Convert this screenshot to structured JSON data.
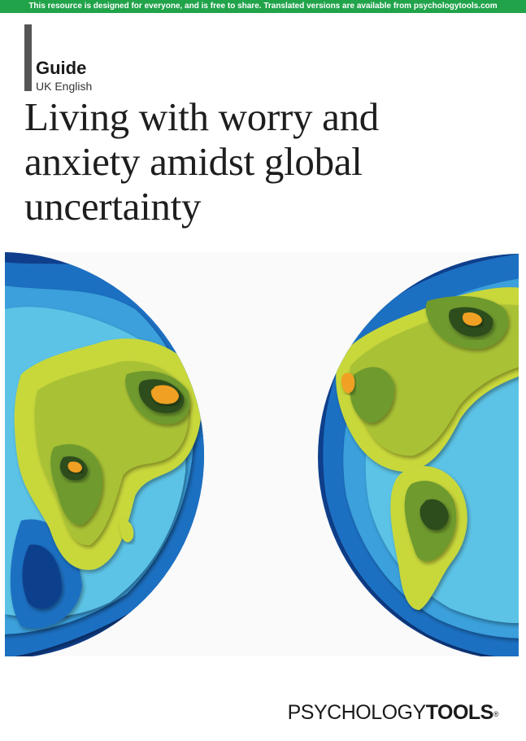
{
  "banner": {
    "text": "This resource is designed for everyone, and is free to share. Translated versions are available from psychologytools.com"
  },
  "doc": {
    "type": "Guide",
    "language": "UK English",
    "title": "Living with worry and anxiety amidst global uncertainty"
  },
  "brand": {
    "light": "PSYCHOLOGY",
    "bold": "TOOLS",
    "mark": "®"
  },
  "colors": {
    "banner": "#21a34a",
    "ocean_deep": "#0f3f8c",
    "ocean_mid": "#1f6fc2",
    "ocean_light": "#5cc3e6",
    "land_light": "#c8d83a",
    "land_mid": "#6e9a2f",
    "land_dark": "#2f4d1f",
    "land_peak": "#f0a020"
  }
}
